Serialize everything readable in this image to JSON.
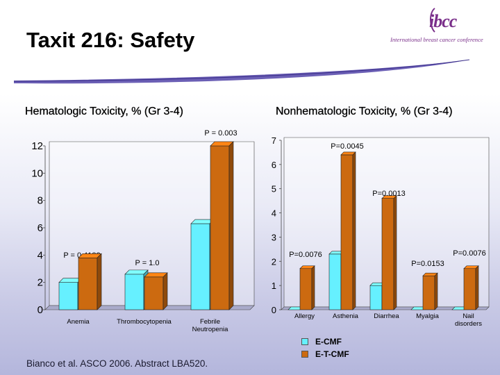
{
  "slide": {
    "title": "Taxit 216: Safety",
    "citation": "Bianco et al. ASCO 2006. Abstract LBA520."
  },
  "logo": {
    "mark": "ibcc",
    "subtitle": "International breast cancer conference"
  },
  "colors": {
    "ecmf": "#66f0ff",
    "etcmf": "#cc6a10",
    "title_swoosh": "#6b5fb5"
  },
  "legend": [
    {
      "name": "E-CMF",
      "color": "#66f0ff"
    },
    {
      "name": "E-T-CMF",
      "color": "#cc6a10"
    }
  ],
  "chart_data": [
    {
      "type": "bar",
      "title": "Hematologic Toxicity, % (Gr 3-4)",
      "categories": [
        "Anemia",
        "Thrombocytopenia",
        "Febrile Neutropenia"
      ],
      "series": [
        {
          "name": "E-CMF",
          "values": [
            2,
            2.6,
            6.3
          ]
        },
        {
          "name": "E-T-CMF",
          "values": [
            3.8,
            2.4,
            12
          ]
        }
      ],
      "ylim": [
        0,
        12
      ],
      "yticks": [
        "0",
        "2",
        "4",
        "6",
        "8",
        "10",
        "12"
      ],
      "annotations": [
        "P = 0.4182",
        "P = 1.0",
        "P = 0.003"
      ],
      "grid": false
    },
    {
      "type": "bar",
      "title": "Nonhematologic Toxicity, % (Gr 3-4)",
      "categories": [
        "Allergy",
        "Asthenia",
        "Diarrhea",
        "Myalgia",
        "Nail disorders"
      ],
      "series": [
        {
          "name": "E-CMF",
          "values": [
            0,
            2.3,
            1,
            0,
            0
          ]
        },
        {
          "name": "E-T-CMF",
          "values": [
            1.7,
            6.4,
            4.6,
            1.4,
            1.7
          ]
        }
      ],
      "ylim": [
        0,
        7
      ],
      "yticks": [
        "0",
        "1",
        "2",
        "3",
        "4",
        "5",
        "6",
        "7"
      ],
      "annotations": [
        "P=0.0076",
        "P=0.0045",
        "P=0.0013",
        "P=0.0153",
        "P=0.0076"
      ],
      "grid": false
    }
  ]
}
